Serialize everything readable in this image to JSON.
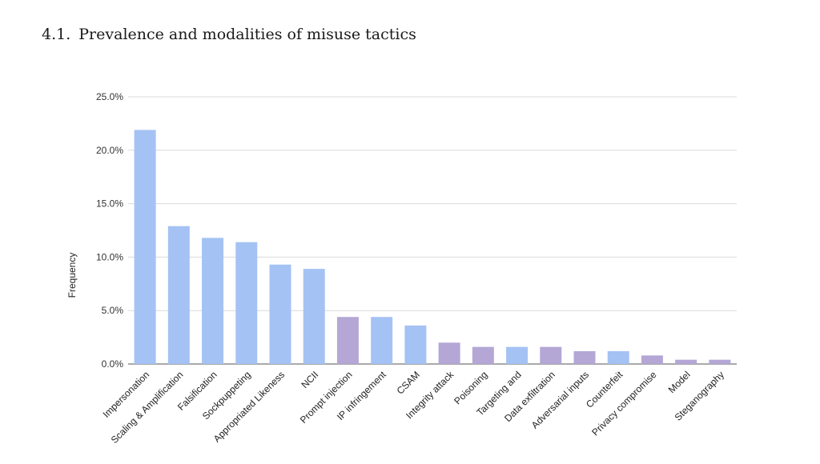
{
  "heading": {
    "number": "4.1.",
    "text": "Prevalence and modalities of misuse tactics"
  },
  "colors": {
    "blue": "#a4c2f4",
    "purple": "#b4a7d6",
    "grid": "#d9d9d9",
    "axis": "#555555"
  },
  "chart_data": {
    "type": "bar",
    "title": "",
    "xlabel": "",
    "ylabel": "Frequency",
    "ylim": [
      0,
      25
    ],
    "yticks": [
      "0.0%",
      "5.0%",
      "10.0%",
      "15.0%",
      "20.0%",
      "25.0%"
    ],
    "grid": true,
    "categories": [
      "Impersonation",
      "Scaling & Amplification",
      "Falsification",
      "Sockpuppeting",
      "Appropriated Likeness",
      "NCII",
      "Prompt injection",
      "IP infringement",
      "CSAM",
      "Integrity attack",
      "Poisoning",
      "Targeting and",
      "Data exfiltration",
      "Adversarial inputs",
      "Counterfeit",
      "Privacy compromise",
      "Model",
      "Steganography"
    ],
    "values": [
      21.9,
      12.9,
      11.8,
      11.4,
      9.3,
      8.9,
      4.4,
      4.4,
      3.6,
      2.0,
      1.6,
      1.6,
      1.6,
      1.2,
      1.2,
      0.8,
      0.4,
      0.4
    ],
    "bar_colors": [
      "blue",
      "blue",
      "blue",
      "blue",
      "blue",
      "blue",
      "purple",
      "blue",
      "blue",
      "purple",
      "purple",
      "blue",
      "purple",
      "purple",
      "blue",
      "purple",
      "purple",
      "purple"
    ]
  }
}
